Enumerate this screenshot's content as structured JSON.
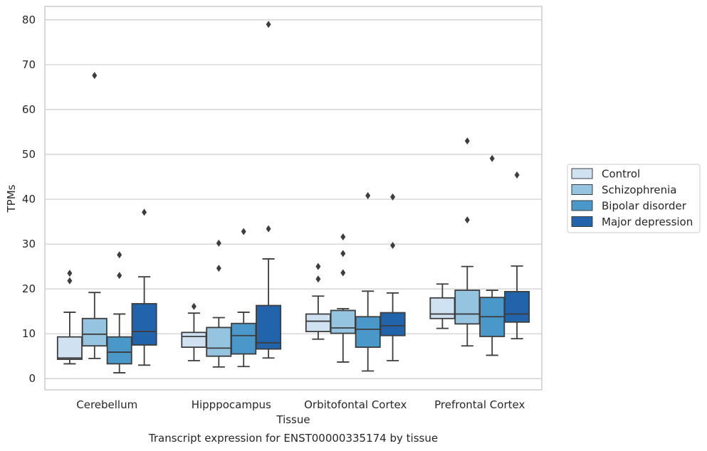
{
  "chart_data": {
    "type": "box",
    "title": "",
    "caption": "Transcript expression for ENST00000335174 by tissue",
    "xlabel": "Tissue",
    "ylabel": "TPMs",
    "ylim": [
      -2.5,
      83
    ],
    "yticks": [
      0,
      10,
      20,
      30,
      40,
      50,
      60,
      70,
      80
    ],
    "grid": "horizontal",
    "legend_position": "right",
    "categories": [
      "Cerebellum",
      "Hipppocampus",
      "Orbitofontal Cortex",
      "Prefrontal Cortex"
    ],
    "series": [
      {
        "name": "Control",
        "color": "#d0e1f2",
        "boxes": [
          {
            "whisker_low": 3.3,
            "q1": 4.3,
            "median": 4.6,
            "q3": 9.3,
            "whisker_high": 14.8,
            "outliers": [
              21.8,
              23.5
            ]
          },
          {
            "whisker_low": 4.0,
            "q1": 7.0,
            "median": 9.4,
            "q3": 10.3,
            "whisker_high": 14.6,
            "outliers": [
              16.1
            ]
          },
          {
            "whisker_low": 8.8,
            "q1": 10.5,
            "median": 12.8,
            "q3": 14.4,
            "whisker_high": 18.4,
            "outliers": [
              22.2,
              25.0
            ]
          },
          {
            "whisker_low": 11.2,
            "q1": 13.4,
            "median": 14.4,
            "q3": 18.0,
            "whisker_high": 21.1,
            "outliers": []
          }
        ]
      },
      {
        "name": "Schizophrenia",
        "color": "#94c4df",
        "boxes": [
          {
            "whisker_low": 4.5,
            "q1": 7.3,
            "median": 9.9,
            "q3": 13.4,
            "whisker_high": 19.2,
            "outliers": [
              67.6
            ]
          },
          {
            "whisker_low": 2.6,
            "q1": 5.0,
            "median": 6.8,
            "q3": 11.4,
            "whisker_high": 13.6,
            "outliers": [
              24.6,
              30.2
            ]
          },
          {
            "whisker_low": 3.7,
            "q1": 10.1,
            "median": 11.3,
            "q3": 15.2,
            "whisker_high": 15.6,
            "outliers": [
              23.6,
              27.9,
              31.6
            ]
          },
          {
            "whisker_low": 7.3,
            "q1": 12.2,
            "median": 14.4,
            "q3": 19.7,
            "whisker_high": 25.0,
            "outliers": [
              35.4,
              53.0
            ]
          }
        ]
      },
      {
        "name": "Bipolar disorder",
        "color": "#4a98c9",
        "boxes": [
          {
            "whisker_low": 1.3,
            "q1": 3.3,
            "median": 5.9,
            "q3": 9.3,
            "whisker_high": 14.4,
            "outliers": [
              23.0,
              27.6
            ]
          },
          {
            "whisker_low": 2.7,
            "q1": 5.5,
            "median": 9.6,
            "q3": 12.3,
            "whisker_high": 14.8,
            "outliers": [
              32.8
            ]
          },
          {
            "whisker_low": 1.7,
            "q1": 7.0,
            "median": 11.0,
            "q3": 13.8,
            "whisker_high": 19.5,
            "outliers": [
              40.8
            ]
          },
          {
            "whisker_low": 5.2,
            "q1": 9.4,
            "median": 13.8,
            "q3": 18.1,
            "whisker_high": 19.7,
            "outliers": [
              49.1
            ]
          }
        ]
      },
      {
        "name": "Major depression",
        "color": "#2264ab",
        "boxes": [
          {
            "whisker_low": 3.0,
            "q1": 7.5,
            "median": 10.5,
            "q3": 16.7,
            "whisker_high": 22.7,
            "outliers": [
              37.1
            ]
          },
          {
            "whisker_low": 4.6,
            "q1": 6.6,
            "median": 8.0,
            "q3": 16.3,
            "whisker_high": 26.7,
            "outliers": [
              33.4,
              79.0
            ]
          },
          {
            "whisker_low": 4.0,
            "q1": 9.6,
            "median": 11.8,
            "q3": 14.7,
            "whisker_high": 19.1,
            "outliers": [
              29.7,
              40.5
            ]
          },
          {
            "whisker_low": 8.9,
            "q1": 12.6,
            "median": 14.4,
            "q3": 19.4,
            "whisker_high": 25.1,
            "outliers": [
              45.4
            ]
          }
        ]
      }
    ]
  }
}
